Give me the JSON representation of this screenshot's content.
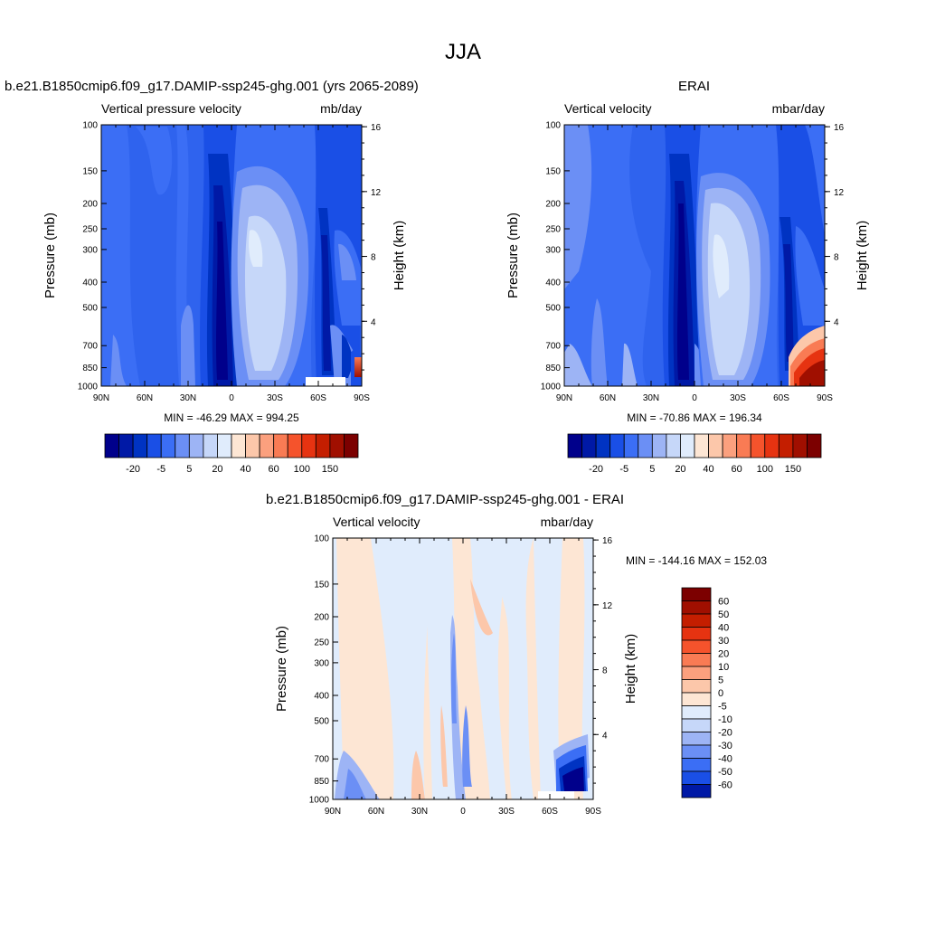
{
  "figure": {
    "title": "JJA"
  },
  "colors": {
    "cool": [
      "#00008b",
      "#0019a6",
      "#0033c2",
      "#1a4fe6",
      "#3b6ef5",
      "#6b8ff5",
      "#9db4f5",
      "#c6d7f9",
      "#e0ecfc"
    ],
    "warm": [
      "#fde6d4",
      "#fcc7aa",
      "#fba07e",
      "#f97b54",
      "#f5532c",
      "#e63311",
      "#c41e00",
      "#a00f00",
      "#7c0000"
    ]
  },
  "chart_data": [
    {
      "type": "heatmap",
      "title": "b.e21.B1850cmip6.f09_g17.DAMIP-ssp245-ghg.001 (yrs 2065-2089)",
      "subtitle_left": "Vertical pressure velocity",
      "subtitle_right": "mb/day",
      "ylabel": "Pressure (mb)",
      "ylabel_right": "Height (km)",
      "x_ticks": [
        "90N",
        "60N",
        "30N",
        "0",
        "30S",
        "60S",
        "90S"
      ],
      "y_ticks": [
        "100",
        "150",
        "200",
        "250",
        "300",
        "400",
        "500",
        "700",
        "850",
        "1000"
      ],
      "y_right_ticks": [
        "16",
        "12",
        "8",
        "4"
      ],
      "stats": "MIN = -46.29  MAX = 994.25",
      "colorbar_labels": [
        "-20",
        "-5",
        "5",
        "20",
        "40",
        "60",
        "100",
        "150"
      ]
    },
    {
      "type": "heatmap",
      "title": "ERAI",
      "subtitle_left": "Vertical velocity",
      "subtitle_right": "mbar/day",
      "ylabel": "Pressure (mb)",
      "ylabel_right": "Height (km)",
      "x_ticks": [
        "90N",
        "60N",
        "30N",
        "0",
        "30S",
        "60S",
        "90S"
      ],
      "y_ticks": [
        "100",
        "150",
        "200",
        "250",
        "300",
        "400",
        "500",
        "700",
        "850",
        "1000"
      ],
      "y_right_ticks": [
        "16",
        "12",
        "8",
        "4"
      ],
      "stats": "MIN = -70.86  MAX = 196.34",
      "colorbar_labels": [
        "-20",
        "-5",
        "5",
        "20",
        "40",
        "60",
        "100",
        "150"
      ]
    },
    {
      "type": "heatmap",
      "title": "b.e21.B1850cmip6.f09_g17.DAMIP-ssp245-ghg.001 - ERAI",
      "subtitle_left": "Vertical velocity",
      "subtitle_right": "mbar/day",
      "ylabel": "Pressure (mb)",
      "ylabel_right": "Height (km)",
      "x_ticks": [
        "90N",
        "60N",
        "30N",
        "0",
        "30S",
        "60S",
        "90S"
      ],
      "y_ticks": [
        "100",
        "150",
        "200",
        "250",
        "300",
        "400",
        "500",
        "700",
        "850",
        "1000"
      ],
      "y_right_ticks": [
        "16",
        "12",
        "8",
        "4"
      ],
      "stats": "MIN = -144.16  MAX = 152.03",
      "colorbar_labels": [
        "60",
        "50",
        "40",
        "30",
        "20",
        "10",
        "5",
        "0",
        "-5",
        "-10",
        "-20",
        "-30",
        "-40",
        "-50",
        "-60"
      ]
    }
  ]
}
